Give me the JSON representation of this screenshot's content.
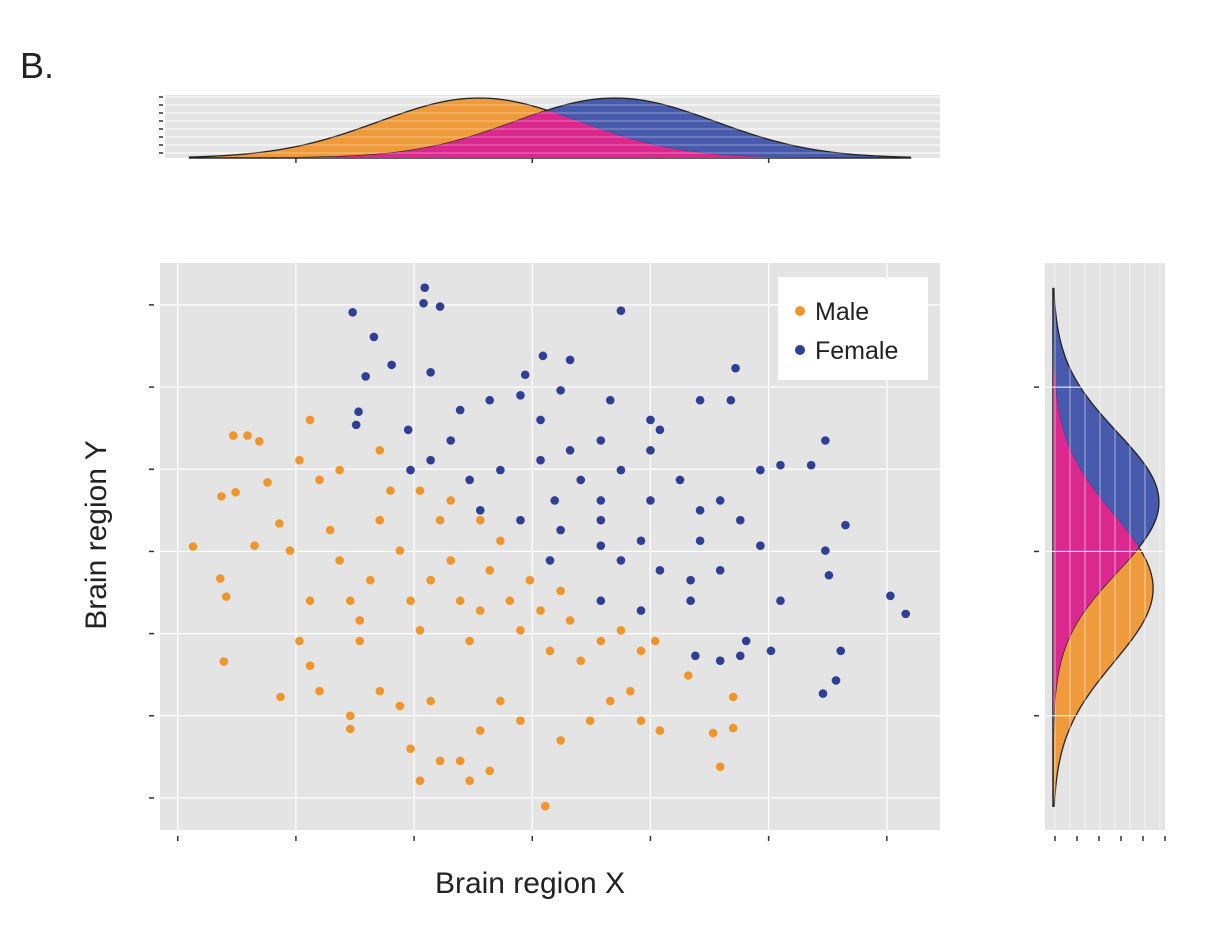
{
  "panel_label": "B.",
  "chart_data": {
    "type": "scatter",
    "xlabel": "Brain region X",
    "ylabel": "Brain region Y",
    "xlim": [
      -3.15,
      3.45
    ],
    "ylim": [
      -3.39,
      3.51
    ],
    "xticks": [
      -3,
      -2,
      -1,
      0,
      1,
      2,
      3
    ],
    "yticks": [
      -3,
      -2,
      -1,
      0,
      1,
      2,
      3
    ],
    "tick_labels_shown": false,
    "grid": true,
    "legend": {
      "position": "top-right",
      "entries": [
        "Male",
        "Female"
      ]
    },
    "colors": {
      "Male": "#f0952c",
      "Female": "#2f3f95",
      "overlap": "#e8258e",
      "panel": "#e4e4e4"
    },
    "series": [
      {
        "name": "Male",
        "points": [
          [
            -2.87,
            0.06
          ],
          [
            -2.64,
            -0.33
          ],
          [
            -2.59,
            -0.55
          ],
          [
            -2.61,
            -1.34
          ],
          [
            -2.63,
            0.67
          ],
          [
            -2.51,
            0.72
          ],
          [
            -2.53,
            1.41
          ],
          [
            -2.41,
            1.41
          ],
          [
            -2.31,
            1.34
          ],
          [
            -2.24,
            0.84
          ],
          [
            -2.35,
            0.07
          ],
          [
            -2.14,
            0.34
          ],
          [
            -2.13,
            -1.77
          ],
          [
            -1.97,
            1.11
          ],
          [
            -2.05,
            0.01
          ],
          [
            -1.88,
            -0.6
          ],
          [
            -1.8,
            0.87
          ],
          [
            -1.71,
            0.26
          ],
          [
            -1.63,
            -0.11
          ],
          [
            -1.54,
            -0.6
          ],
          [
            -1.46,
            -1.09
          ],
          [
            -1.37,
            -0.35
          ],
          [
            -1.29,
            0.38
          ],
          [
            -1.2,
            0.74
          ],
          [
            -1.12,
            0.01
          ],
          [
            -1.03,
            -0.6
          ],
          [
            -0.95,
            -0.96
          ],
          [
            -0.86,
            -0.35
          ],
          [
            -0.78,
            0.38
          ],
          [
            -0.69,
            -0.11
          ],
          [
            -0.61,
            -0.6
          ],
          [
            -0.53,
            -1.09
          ],
          [
            -0.44,
            -0.72
          ],
          [
            -0.36,
            -0.23
          ],
          [
            -0.27,
            0.13
          ],
          [
            -0.19,
            -0.6
          ],
          [
            -0.1,
            -0.96
          ],
          [
            -0.02,
            -0.35
          ],
          [
            0.07,
            -0.72
          ],
          [
            0.15,
            -1.21
          ],
          [
            0.24,
            -0.48
          ],
          [
            0.32,
            -0.84
          ],
          [
            0.41,
            -1.33
          ],
          [
            0.58,
            -1.09
          ],
          [
            0.75,
            -0.96
          ],
          [
            0.92,
            -1.21
          ],
          [
            1.04,
            -1.09
          ],
          [
            0.83,
            -1.7
          ],
          [
            0.66,
            -1.82
          ],
          [
            0.49,
            -2.06
          ],
          [
            0.24,
            -2.3
          ],
          [
            -0.1,
            -2.06
          ],
          [
            -0.27,
            -1.82
          ],
          [
            -0.44,
            -2.18
          ],
          [
            -0.61,
            -2.55
          ],
          [
            -0.78,
            -2.55
          ],
          [
            -0.95,
            -2.79
          ],
          [
            -1.03,
            -2.4
          ],
          [
            -0.53,
            -2.79
          ],
          [
            -0.36,
            -2.67
          ],
          [
            0.11,
            -3.1
          ],
          [
            -0.86,
            -1.82
          ],
          [
            -1.12,
            -1.88
          ],
          [
            -1.29,
            -1.7
          ],
          [
            -1.54,
            -2.0
          ],
          [
            -1.54,
            -2.16
          ],
          [
            -1.8,
            -1.7
          ],
          [
            -1.97,
            -1.09
          ],
          [
            -1.88,
            -1.39
          ],
          [
            -1.46,
            -0.84
          ],
          [
            1.32,
            -1.51
          ],
          [
            1.7,
            -1.77
          ],
          [
            1.7,
            -2.15
          ],
          [
            1.59,
            -2.62
          ],
          [
            1.53,
            -2.21
          ],
          [
            1.08,
            -2.18
          ],
          [
            0.92,
            -2.06
          ],
          [
            -1.63,
            0.99
          ],
          [
            -1.29,
            1.23
          ],
          [
            -0.95,
            0.74
          ],
          [
            -0.69,
            0.62
          ],
          [
            -0.44,
            0.38
          ],
          [
            -1.88,
            1.6
          ]
        ]
      },
      {
        "name": "Female",
        "points": [
          [
            -1.52,
            2.91
          ],
          [
            -0.91,
            3.21
          ],
          [
            -0.92,
            3.02
          ],
          [
            -0.78,
            2.98
          ],
          [
            0.75,
            2.93
          ],
          [
            -1.34,
            2.61
          ],
          [
            -1.19,
            2.27
          ],
          [
            -1.41,
            2.13
          ],
          [
            -0.86,
            2.18
          ],
          [
            0.09,
            2.38
          ],
          [
            0.32,
            2.33
          ],
          [
            1.72,
            2.23
          ],
          [
            -0.06,
            2.15
          ],
          [
            -1.47,
            1.7
          ],
          [
            -1.49,
            1.54
          ],
          [
            -1.05,
            1.48
          ],
          [
            -0.61,
            1.72
          ],
          [
            -0.36,
            1.84
          ],
          [
            -0.1,
            1.9
          ],
          [
            0.24,
            1.96
          ],
          [
            0.66,
            1.84
          ],
          [
            1.0,
            1.6
          ],
          [
            1.42,
            1.84
          ],
          [
            1.68,
            1.84
          ],
          [
            2.48,
            1.35
          ],
          [
            2.1,
            1.05
          ],
          [
            2.36,
            1.05
          ],
          [
            1.93,
            0.99
          ],
          [
            0.58,
            1.35
          ],
          [
            1.0,
            1.23
          ],
          [
            0.32,
            1.23
          ],
          [
            0.07,
            1.11
          ],
          [
            -0.27,
            0.99
          ],
          [
            -0.53,
            0.87
          ],
          [
            -0.86,
            1.11
          ],
          [
            1.25,
            0.87
          ],
          [
            1.59,
            0.62
          ],
          [
            1.76,
            0.38
          ],
          [
            1.42,
            0.13
          ],
          [
            0.92,
            0.13
          ],
          [
            0.58,
            0.38
          ],
          [
            0.24,
            0.26
          ],
          [
            -0.1,
            0.38
          ],
          [
            -0.44,
            0.5
          ],
          [
            0.58,
            0.62
          ],
          [
            1.0,
            0.62
          ],
          [
            1.42,
            0.5
          ],
          [
            0.75,
            -0.11
          ],
          [
            1.08,
            -0.23
          ],
          [
            1.34,
            -0.35
          ],
          [
            1.93,
            0.07
          ],
          [
            2.1,
            -0.6
          ],
          [
            1.81,
            -1.09
          ],
          [
            2.02,
            -1.21
          ],
          [
            1.76,
            -1.27
          ],
          [
            2.48,
            0.01
          ],
          [
            2.51,
            -0.29
          ],
          [
            2.65,
            0.32
          ],
          [
            3.03,
            -0.54
          ],
          [
            3.16,
            -0.76
          ],
          [
            2.61,
            -1.21
          ],
          [
            2.57,
            -1.57
          ],
          [
            2.46,
            -1.73
          ],
          [
            1.59,
            -1.33
          ],
          [
            1.38,
            -1.27
          ],
          [
            0.58,
            -0.6
          ],
          [
            0.92,
            -0.72
          ],
          [
            1.34,
            -0.6
          ],
          [
            1.59,
            -0.23
          ],
          [
            0.15,
            -0.11
          ],
          [
            0.41,
            0.87
          ],
          [
            0.75,
            0.99
          ],
          [
            1.08,
            1.48
          ],
          [
            0.07,
            1.6
          ],
          [
            -0.69,
            1.35
          ],
          [
            -1.03,
            0.99
          ],
          [
            0.58,
            0.07
          ],
          [
            0.19,
            0.62
          ]
        ]
      }
    ],
    "marginal_x_density": {
      "Male": {
        "mean": -0.45,
        "sd": 0.85
      },
      "Female": {
        "mean": 0.7,
        "sd": 0.85
      }
    },
    "marginal_y_density": {
      "Male": {
        "mean": -0.45,
        "sd": 0.9
      },
      "Female": {
        "mean": 0.6,
        "sd": 0.85
      }
    }
  }
}
